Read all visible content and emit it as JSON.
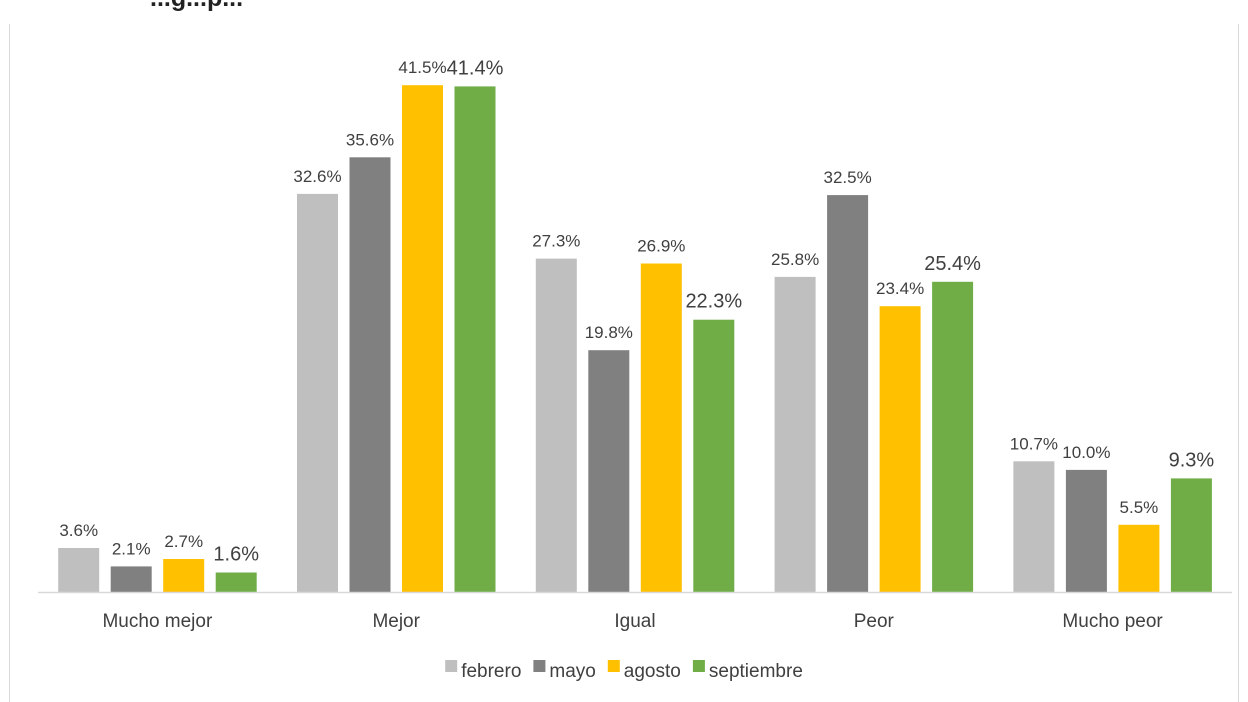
{
  "chart_data": {
    "type": "bar",
    "title": "...g...p...",
    "categories": [
      "Mucho mejor",
      "Mejor",
      "Igual",
      "Peor",
      "Mucho peor"
    ],
    "series": [
      {
        "name": "febrero",
        "color": "#BFBFBF",
        "values": [
          3.6,
          32.6,
          27.3,
          25.8,
          10.7
        ],
        "labels": [
          "3.6%",
          "32.6%",
          "27.3%",
          "25.8%",
          "10.7%"
        ]
      },
      {
        "name": "mayo",
        "color": "#808080",
        "values": [
          2.1,
          35.6,
          19.8,
          32.5,
          10.0
        ],
        "labels": [
          "2.1%",
          "35.6%",
          "19.8%",
          "32.5%",
          "10.0%"
        ]
      },
      {
        "name": "agosto",
        "color": "#FFC000",
        "values": [
          2.7,
          41.5,
          26.9,
          23.4,
          5.5
        ],
        "labels": [
          "2.7%",
          "41.5%",
          "26.9%",
          "23.4%",
          "5.5%"
        ]
      },
      {
        "name": "septiembre",
        "color": "#70AD47",
        "values": [
          1.6,
          41.4,
          22.3,
          25.4,
          9.3
        ],
        "labels": [
          "1.6%",
          "41.4%",
          "22.3%",
          "25.4%",
          "9.3%"
        ]
      }
    ],
    "ylim": [
      0,
      42.5
    ],
    "xlabel": "",
    "ylabel": "",
    "grid": false,
    "legend_position": "bottom"
  }
}
